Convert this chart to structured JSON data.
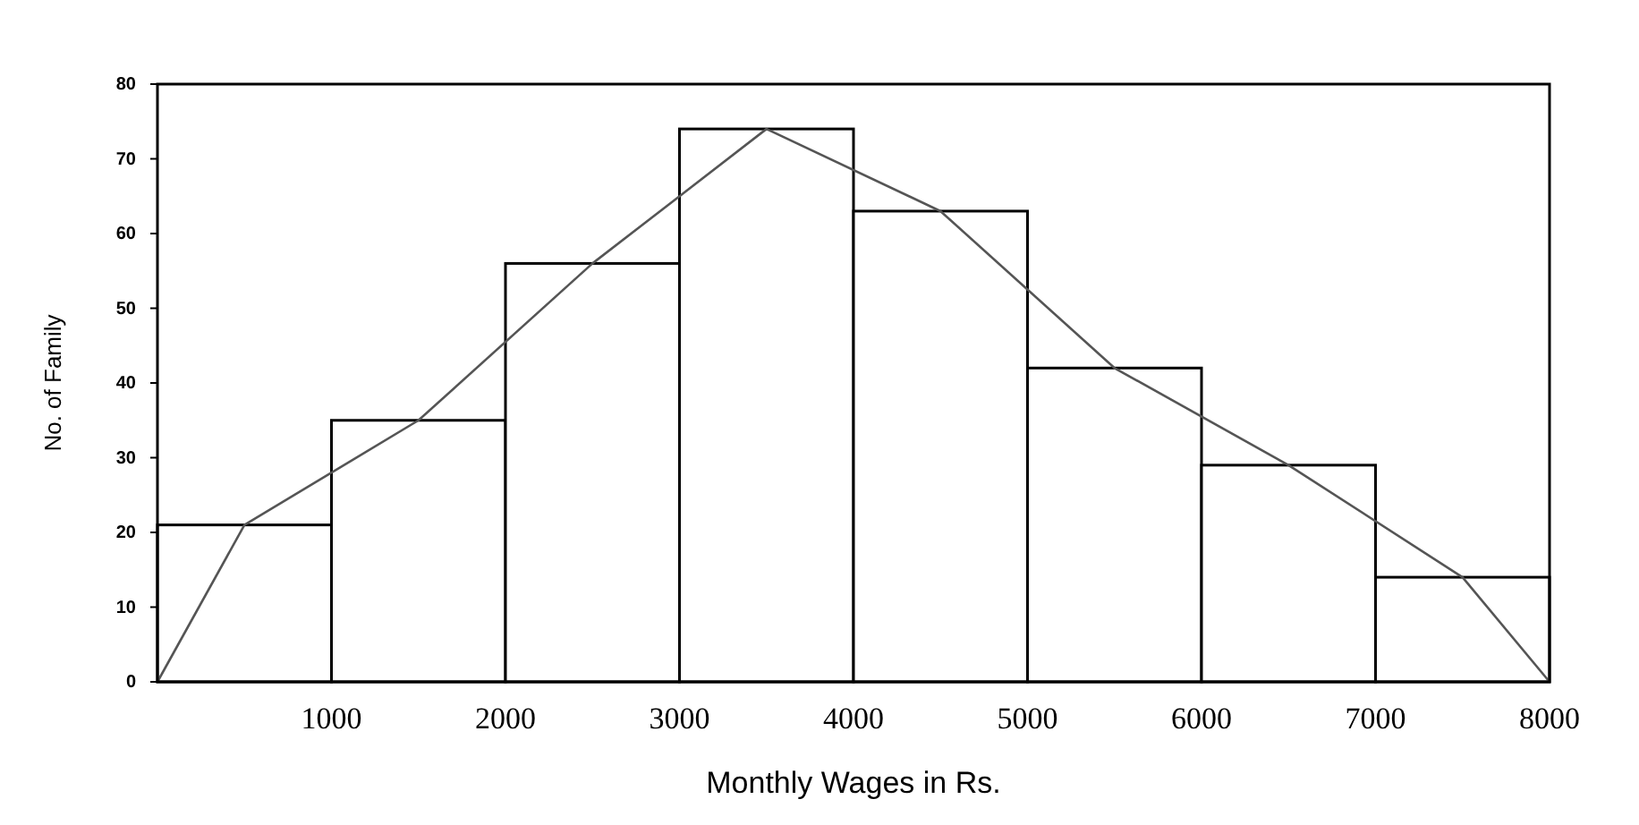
{
  "chart_data": {
    "type": "histogram",
    "xlabel": "Monthly Wages in Rs.",
    "ylabel": "No. of Family",
    "xlim": [
      0,
      8000
    ],
    "ylim": [
      0,
      80
    ],
    "xticks": [
      1000,
      2000,
      3000,
      4000,
      5000,
      6000,
      7000,
      8000
    ],
    "yticks": [
      0,
      10,
      20,
      30,
      40,
      50,
      60,
      70,
      80
    ],
    "grid": false,
    "marker": "none",
    "line_style": "solid",
    "series": [
      {
        "color": "#ffffff",
        "bins": [
          0,
          1000,
          2000,
          3000,
          4000,
          5000,
          6000,
          7000,
          8000
        ],
        "values": [
          21,
          35,
          56,
          74,
          63,
          42,
          29,
          14
        ]
      },
      {
        "type": "line",
        "color": "#555555",
        "x": [
          0,
          500,
          1500,
          2500,
          3500,
          4500,
          5500,
          6500,
          7500,
          8000
        ],
        "values": [
          0,
          21,
          35,
          56,
          74,
          63,
          42,
          29,
          14,
          0
        ]
      }
    ]
  }
}
